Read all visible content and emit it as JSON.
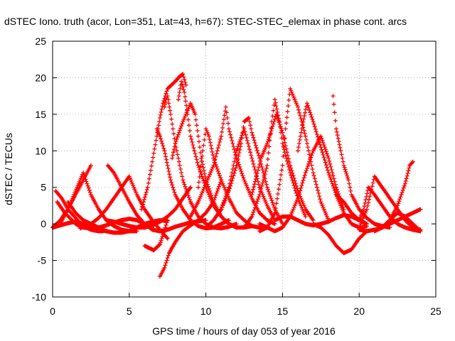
{
  "chart_data": {
    "type": "scatter",
    "title": "dSTEC Iono. truth (acor, Lon=351, Lat=43, h=67): STEC-STEC_elemax in phase cont. arcs",
    "xlabel": "GPS time / hours of day 053 of year 2016",
    "ylabel": "dSTEC  / TECUs",
    "xlim": [
      0,
      25
    ],
    "ylim": [
      -10,
      25
    ],
    "xticks": [
      0,
      5,
      10,
      15,
      20,
      25
    ],
    "yticks": [
      -10,
      -5,
      0,
      5,
      10,
      15,
      20,
      25
    ],
    "grid": true,
    "marker": "+",
    "color": "#ff0000",
    "series": [
      {
        "x": [
          0.0,
          0.5,
          1.0,
          1.5,
          2.0,
          2.5
        ],
        "y": [
          -0.5,
          0.5,
          2.0,
          4.0,
          6.0,
          8.0
        ]
      },
      {
        "x": [
          0.2,
          0.6,
          1.0,
          1.5,
          2.0,
          2.5,
          3.0,
          3.3
        ],
        "y": [
          4.5,
          3.5,
          2.0,
          0.8,
          -0.3,
          -0.8,
          -1.0,
          -1.0
        ]
      },
      {
        "x": [
          0.0,
          0.5,
          1.0,
          1.5,
          2.0,
          2.5,
          3.0,
          3.5,
          4.0
        ],
        "y": [
          -0.5,
          -0.2,
          0.1,
          0.3,
          0.0,
          -0.4,
          -0.8,
          -1.0,
          -1.2
        ]
      },
      {
        "x": [
          0.3,
          0.8,
          1.5,
          2.0,
          2.5,
          3.0,
          3.5,
          4.0,
          4.5,
          5.0,
          5.5,
          6.0,
          6.5
        ],
        "y": [
          3.0,
          1.5,
          0.0,
          -0.5,
          -0.6,
          -0.5,
          -0.2,
          0.2,
          0.5,
          0.7,
          0.5,
          0.0,
          -0.5
        ]
      },
      {
        "x": [
          0.5,
          1.0,
          1.5,
          2.0,
          2.5,
          3.0,
          3.5,
          4.0,
          4.5,
          5.0,
          5.5
        ],
        "y": [
          0.0,
          2.0,
          4.5,
          7.0,
          4.0,
          2.0,
          0.5,
          -0.3,
          -0.8,
          -1.0,
          -1.0
        ]
      },
      {
        "x": [
          1.0,
          1.5,
          2.0,
          2.5,
          3.0,
          3.5,
          4.0,
          4.5,
          5.0,
          5.5,
          6.0,
          6.5,
          7.0,
          7.5
        ],
        "y": [
          3.0,
          1.5,
          0.5,
          0.0,
          -0.5,
          -1.0,
          -1.2,
          -1.2,
          -1.0,
          -0.5,
          0.0,
          0.3,
          0.5,
          0.4
        ]
      },
      {
        "x": [
          3.6,
          4.0,
          4.5,
          5.0,
          5.5,
          6.0,
          6.5,
          7.0,
          7.5,
          8.0,
          9.0,
          10.0
        ],
        "y": [
          8.0,
          7.0,
          5.0,
          3.0,
          1.2,
          0.0,
          -0.8,
          -1.0,
          -0.8,
          -0.4,
          0.2,
          0.5
        ]
      },
      {
        "x": [
          1.8,
          2.0,
          2.5,
          3.0,
          3.5,
          4.0,
          4.5,
          5.0,
          5.5,
          6.0,
          6.5,
          7.0,
          7.5
        ],
        "y": [
          -0.6,
          -0.4,
          0.0,
          0.8,
          2.0,
          3.5,
          5.0,
          6.5,
          4.0,
          2.0,
          0.5,
          -0.8,
          -2.0
        ]
      },
      {
        "x": [
          3.5,
          4.0,
          4.5,
          5.0,
          5.5,
          6.0,
          6.5,
          7.0,
          7.5,
          8.0,
          8.5,
          9.0
        ],
        "y": [
          0.5,
          0.3,
          0.0,
          -0.3,
          -0.5,
          -0.5,
          -0.2,
          0.3,
          1.0,
          2.0,
          3.5,
          5.0
        ]
      },
      {
        "x": [
          6.0,
          6.3,
          6.6,
          7.0,
          7.2,
          7.5
        ],
        "y": [
          -3.0,
          -3.3,
          -3.6,
          -2.8,
          -1.5,
          0.5
        ]
      },
      {
        "x": [
          7.0,
          7.3,
          7.6,
          8.0,
          8.5,
          9.0,
          9.5,
          10.0,
          10.5,
          11.0
        ],
        "y": [
          -7.2,
          -6.0,
          -4.0,
          -2.5,
          -1.0,
          -0.2,
          0.5,
          1.5,
          3.0,
          6.0
        ]
      },
      {
        "x": [
          6.8,
          7.0,
          7.3,
          7.5,
          7.7,
          8.0,
          8.5,
          9.0,
          9.5,
          10.0,
          10.5,
          11.0,
          11.5
        ],
        "y": [
          13.0,
          12.0,
          10.0,
          8.0,
          6.0,
          4.0,
          2.0,
          0.5,
          -0.3,
          -0.6,
          -0.5,
          0.0,
          0.5
        ]
      },
      {
        "x": [
          7.3,
          7.4,
          7.5,
          7.7,
          8.0,
          8.5,
          9.0,
          9.5,
          10.0,
          10.5,
          11.0,
          11.5,
          12.0
        ],
        "y": [
          16.0,
          17.0,
          17.5,
          15.0,
          11.0,
          6.0,
          3.0,
          1.0,
          0.0,
          -0.5,
          -0.6,
          -0.4,
          0.0
        ]
      },
      {
        "x": [
          5.8,
          6.2,
          6.5,
          6.8,
          7.0,
          7.2,
          7.5,
          8.0,
          8.3,
          8.5,
          8.7
        ],
        "y": [
          2.0,
          5.0,
          8.5,
          12.0,
          14.5,
          16.5,
          18.5,
          19.5,
          20.2,
          20.5,
          19.0
        ]
      },
      {
        "x": [
          8.2,
          8.4,
          8.6,
          8.8,
          9.0,
          9.5,
          10.0,
          10.5,
          11.0,
          11.5,
          12.0,
          12.5,
          13.0
        ],
        "y": [
          17.0,
          19.5,
          18.0,
          15.0,
          12.0,
          8.0,
          5.0,
          2.5,
          1.0,
          0.0,
          -0.5,
          -0.5,
          -0.3
        ]
      },
      {
        "x": [
          7.8,
          8.0,
          8.5,
          9.0,
          9.3,
          9.5,
          9.7,
          10.0,
          10.5,
          11.0,
          11.5,
          12.0
        ],
        "y": [
          9.0,
          11.0,
          14.0,
          16.5,
          15.0,
          12.0,
          9.0,
          6.0,
          3.0,
          1.0,
          0.0,
          -0.5
        ]
      },
      {
        "x": [
          9.5,
          9.8,
          10.0,
          10.2,
          10.5,
          11.0,
          11.5,
          12.0,
          12.5,
          13.0,
          13.5,
          14.0
        ],
        "y": [
          5.0,
          10.0,
          13.0,
          12.0,
          9.0,
          6.0,
          3.5,
          1.5,
          0.5,
          -0.3,
          -0.5,
          -0.5
        ]
      },
      {
        "x": [
          9.0,
          9.5,
          10.0,
          10.5,
          11.0,
          11.3,
          11.5,
          12.0,
          12.5,
          13.0,
          13.5,
          14.0,
          14.5
        ],
        "y": [
          1.0,
          3.0,
          5.5,
          8.0,
          12.0,
          16.0,
          13.0,
          9.0,
          6.0,
          3.5,
          1.5,
          0.5,
          0.0
        ]
      },
      {
        "x": [
          10.0,
          10.5,
          11.0,
          11.5,
          12.0,
          12.3,
          12.5,
          12.8,
          13.0,
          13.5,
          14.0,
          14.5,
          15.0
        ],
        "y": [
          -0.5,
          0.5,
          2.0,
          4.5,
          8.0,
          11.0,
          14.0,
          14.5,
          12.5,
          9.0,
          5.0,
          2.0,
          0.0
        ]
      },
      {
        "x": [
          10.5,
          11.0,
          11.5,
          12.0,
          12.5,
          13.0,
          13.5,
          14.0,
          14.5
        ],
        "y": [
          0.5,
          2.0,
          5.0,
          10.0,
          13.0,
          9.0,
          5.0,
          2.5,
          0.5
        ]
      },
      {
        "x": [
          13.0,
          13.3,
          13.6,
          14.0,
          14.3,
          14.6,
          15.0,
          15.5,
          16.0,
          16.5,
          17.0
        ],
        "y": [
          4.0,
          6.5,
          9.0,
          11.0,
          13.0,
          15.0,
          12.5,
          8.0,
          4.5,
          2.0,
          0.5
        ]
      },
      {
        "x": [
          12.5,
          13.0,
          13.5,
          14.0,
          14.3,
          14.5,
          14.8,
          15.0,
          15.5,
          16.0,
          16.5
        ],
        "y": [
          -0.5,
          1.0,
          4.0,
          8.0,
          14.0,
          17.0,
          14.0,
          11.0,
          7.0,
          3.5,
          1.0
        ]
      },
      {
        "x": [
          13.5,
          14.0,
          14.5,
          15.0,
          15.2,
          15.5,
          16.0,
          16.5,
          17.0,
          17.5,
          18.0
        ],
        "y": [
          -1.0,
          -0.5,
          1.5,
          8.0,
          13.0,
          18.5,
          16.0,
          12.0,
          7.0,
          3.0,
          0.5
        ]
      },
      {
        "x": [
          13.5,
          14.0,
          14.5,
          15.0,
          15.5,
          16.0,
          16.5,
          17.0,
          17.5,
          18.0,
          18.5,
          19.0
        ],
        "y": [
          0.0,
          -0.5,
          -1.0,
          -0.5,
          1.0,
          3.5,
          7.0,
          10.0,
          12.0,
          9.0,
          5.0,
          2.0
        ]
      },
      {
        "x": [
          16.0,
          16.3,
          16.6,
          17.0,
          17.5,
          18.0,
          18.5,
          19.0,
          19.5,
          20.0,
          20.5
        ],
        "y": [
          10.0,
          13.5,
          16.5,
          14.0,
          10.5,
          7.0,
          4.0,
          1.5,
          0.0,
          -0.5,
          -0.3
        ]
      },
      {
        "x": [
          14.5,
          15.0,
          15.5,
          16.0,
          16.5,
          17.0,
          17.5,
          18.0,
          18.5,
          19.0,
          19.5,
          20.0,
          20.5
        ],
        "y": [
          0.5,
          1.0,
          1.0,
          0.5,
          0.0,
          -0.2,
          0.0,
          0.3,
          0.8,
          1.2,
          1.0,
          0.5,
          0.0
        ]
      },
      {
        "x": [
          17.0,
          17.5,
          18.0,
          18.5,
          19.0,
          19.5,
          20.0,
          20.5
        ],
        "y": [
          0.0,
          -0.5,
          -1.5,
          -3.0,
          -4.0,
          -3.5,
          -2.0,
          -1.0
        ]
      },
      {
        "x": [
          18.3,
          18.5,
          18.8,
          19.0,
          19.3,
          19.5,
          20.0,
          20.5,
          21.0,
          21.5,
          22.0
        ],
        "y": [
          17.5,
          13.0,
          10.0,
          8.0,
          6.0,
          4.0,
          2.0,
          0.8,
          0.0,
          -0.3,
          -0.5
        ]
      },
      {
        "x": [
          18.5,
          19.0,
          19.5,
          20.0,
          20.3,
          20.6,
          21.0,
          21.5,
          22.0,
          22.5,
          23.0,
          23.5,
          24.0
        ],
        "y": [
          4.0,
          3.0,
          1.5,
          0.5,
          2.0,
          5.0,
          4.0,
          2.5,
          1.0,
          0.0,
          -0.5,
          -0.8,
          -1.0
        ]
      },
      {
        "x": [
          20.0,
          20.5,
          21.0,
          21.5,
          22.0,
          22.5,
          23.0,
          23.5,
          24.0
        ],
        "y": [
          -0.5,
          2.0,
          6.5,
          5.0,
          3.5,
          2.0,
          0.5,
          -0.5,
          -0.8
        ]
      },
      {
        "x": [
          20.0,
          20.5,
          21.0,
          21.5,
          22.0,
          22.5,
          23.0,
          23.5,
          24.0
        ],
        "y": [
          -0.8,
          -1.0,
          -0.8,
          -0.5,
          0.0,
          0.5,
          1.0,
          1.5,
          2.0
        ]
      },
      {
        "x": [
          21.0,
          21.5,
          22.0,
          22.5,
          23.0,
          23.3,
          23.5
        ],
        "y": [
          -1.0,
          -0.5,
          0.5,
          2.5,
          5.5,
          8.0,
          8.5
        ]
      },
      {
        "x": [
          21.5,
          22.0,
          22.5,
          23.0,
          23.5,
          24.0
        ],
        "y": [
          -0.5,
          0.5,
          1.5,
          1.0,
          0.0,
          -1.0
        ]
      }
    ]
  }
}
